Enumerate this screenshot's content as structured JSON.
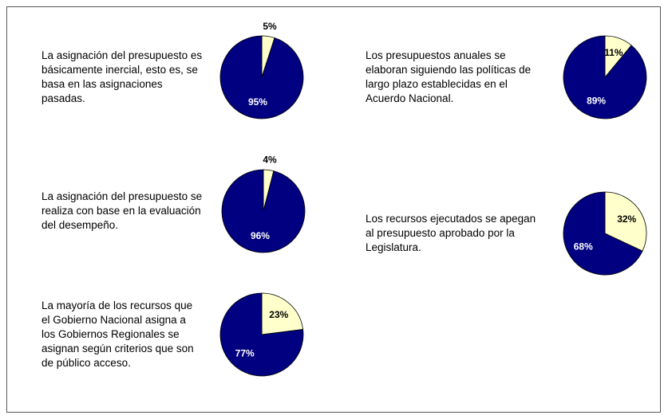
{
  "chart_data": [
    {
      "type": "pie",
      "title": "La asignación del presupuesto es básicamente inercial, esto es, se basa en las asignaciones pasadas.",
      "values": [
        5,
        95
      ],
      "value_labels": [
        "5%",
        "95%"
      ],
      "colors": [
        "#ffffcc",
        "#000080"
      ]
    },
    {
      "type": "pie",
      "title": "Los presupuestos anuales se elaboran siguiendo las políticas de largo plazo establecidas en el Acuerdo Nacional.",
      "values": [
        11,
        89
      ],
      "value_labels": [
        "11%",
        "89%"
      ],
      "colors": [
        "#ffffcc",
        "#000080"
      ]
    },
    {
      "type": "pie",
      "title": "La asignación del presupuesto se realiza con base en la evaluación del desempeño.",
      "values": [
        4,
        96
      ],
      "value_labels": [
        "4%",
        "96%"
      ],
      "colors": [
        "#ffffcc",
        "#000080"
      ]
    },
    {
      "type": "pie",
      "title": "Los recursos ejecutados se apegan al presupuesto aprobado por la Legislatura.",
      "values": [
        32,
        68
      ],
      "value_labels": [
        "32%",
        "68%"
      ],
      "colors": [
        "#ffffcc",
        "#000080"
      ]
    },
    {
      "type": "pie",
      "title": "La mayoría de los recursos que el Gobierno Nacional asigna a los Gobiernos Regionales se asignan según criterios que son de público acceso.",
      "values": [
        23,
        77
      ],
      "value_labels": [
        "23%",
        "77%"
      ],
      "colors": [
        "#ffffcc",
        "#000080"
      ]
    }
  ]
}
